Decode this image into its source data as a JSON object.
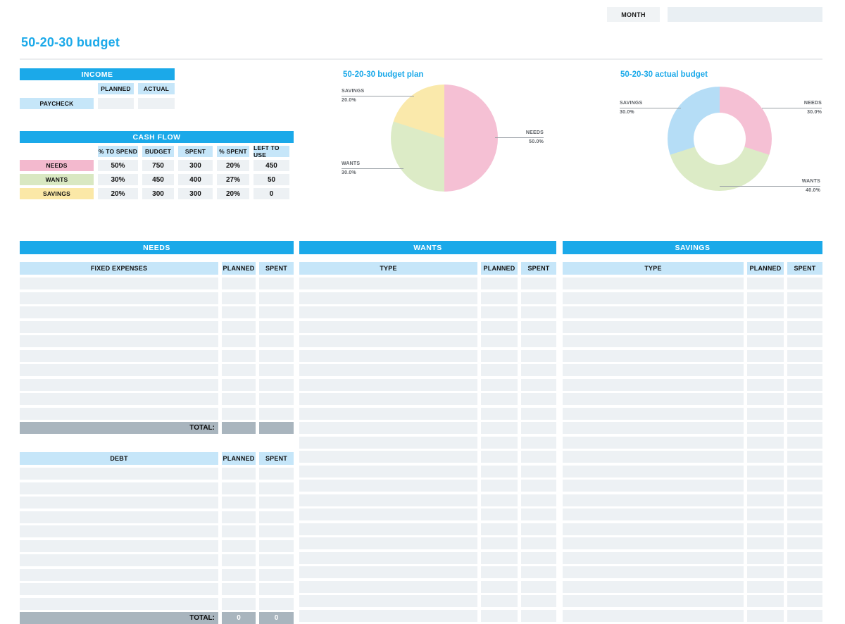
{
  "page_title": "50-20-30 budget",
  "topbar": {
    "month_label": "MONTH",
    "month_value": ""
  },
  "colors": {
    "accent": "#1ba9e9",
    "subheader_blue": "#c6e6f9",
    "row_gray": "#edf1f4",
    "total_gray": "#a9b5be",
    "needs_pink": "#f3b9ce",
    "wants_green": "#d9e8c2",
    "savings_yellow": "#fbe8a7",
    "donut_blue": "#b5ddf6"
  },
  "income": {
    "title": "INCOME",
    "col_planned": "PLANNED",
    "col_actual": "ACTUAL",
    "row_label": "PAYCHECK",
    "planned_value": "",
    "actual_value": ""
  },
  "cash_flow": {
    "title": "CASH FLOW",
    "columns": [
      "% TO SPEND",
      "BUDGET",
      "SPENT",
      "% SPENT",
      "LEFT TO USE"
    ],
    "rows": [
      {
        "label": "NEEDS",
        "color": "#f3b9ce",
        "values": [
          "50%",
          "750",
          "300",
          "20%",
          "450"
        ]
      },
      {
        "label": "WANTS",
        "color": "#d9e8c2",
        "values": [
          "30%",
          "450",
          "400",
          "27%",
          "50"
        ]
      },
      {
        "label": "SAVINGS",
        "color": "#fbe8a7",
        "values": [
          "20%",
          "300",
          "300",
          "20%",
          "0"
        ]
      }
    ]
  },
  "chart_data": [
    {
      "type": "pie",
      "title": "50-20-30 budget plan",
      "categories": [
        "NEEDS",
        "WANTS",
        "SAVINGS"
      ],
      "values": [
        50.0,
        30.0,
        20.0
      ],
      "unit": "percent",
      "colors": [
        "#f5c0d4",
        "#dcebc6",
        "#fae9ab"
      ],
      "donut": false,
      "legend_position": "outside-callouts",
      "callouts": {
        "needs": {
          "name": "NEEDS",
          "pct": "50.0%"
        },
        "wants": {
          "name": "WANTS",
          "pct": "30.0%"
        },
        "savings": {
          "name": "SAVINGS",
          "pct": "20.0%"
        }
      }
    },
    {
      "type": "pie",
      "title": "50-20-30 actual budget",
      "categories": [
        "NEEDS",
        "WANTS",
        "SAVINGS"
      ],
      "values": [
        30.0,
        40.0,
        30.0
      ],
      "unit": "percent",
      "colors": [
        "#f5c0d4",
        "#dcebc6",
        "#b5ddf6"
      ],
      "donut": true,
      "legend_position": "outside-callouts",
      "callouts": {
        "needs": {
          "name": "NEEDS",
          "pct": "30.0%"
        },
        "wants": {
          "name": "WANTS",
          "pct": "40.0%"
        },
        "savings": {
          "name": "SAVINGS",
          "pct": "30.0%"
        }
      }
    }
  ],
  "needs_table": {
    "title": "NEEDS",
    "fixed": {
      "col1": "FIXED EXPENSES",
      "col2": "PLANNED",
      "col3": "SPENT",
      "row_count": 10,
      "total_label": "TOTAL:",
      "total_planned": "",
      "total_spent": ""
    },
    "debt": {
      "col1": "DEBT",
      "col2": "PLANNED",
      "col3": "SPENT",
      "row_count": 10,
      "total_label": "TOTAL:",
      "total_planned": "0",
      "total_spent": "0"
    }
  },
  "wants_table": {
    "title": "WANTS",
    "col1": "TYPE",
    "col2": "PLANNED",
    "col3": "SPENT",
    "row_count": 24
  },
  "savings_table": {
    "title": "SAVINGS",
    "col1": "TYPE",
    "col2": "PLANNED",
    "col3": "SPENT",
    "row_count": 24
  }
}
